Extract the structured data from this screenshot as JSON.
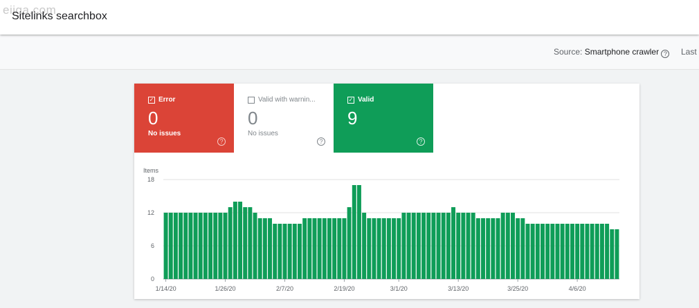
{
  "watermark": "eiiga.com",
  "page_title": "Sitelinks searchbox",
  "source": {
    "label": "Source:",
    "value": "Smartphone crawler",
    "help": "?"
  },
  "last_label": "Last",
  "tiles": {
    "error": {
      "label": "Error",
      "count": "0",
      "sub": "No issues",
      "color": "#db4437"
    },
    "warning": {
      "label": "Valid with warnin...",
      "count": "0",
      "sub": "No issues"
    },
    "valid": {
      "label": "Valid",
      "count": "9",
      "sub": "",
      "color": "#0f9d58"
    }
  },
  "check_glyph": "✓",
  "help_glyph": "?",
  "chart_data": {
    "type": "bar",
    "ylabel": "Items",
    "yticks": [
      "0",
      "6",
      "12",
      "18"
    ],
    "ylim": [
      0,
      18
    ],
    "xtick_labels": [
      "1/14/20",
      "1/26/20",
      "2/7/20",
      "2/19/20",
      "3/1/20",
      "3/13/20",
      "3/25/20",
      "4/6/20"
    ],
    "xtick_index": [
      0,
      12,
      24,
      36,
      47,
      59,
      71,
      83
    ],
    "bar_color": "#0f9d58",
    "values": [
      12,
      12,
      12,
      12,
      12,
      12,
      12,
      12,
      12,
      12,
      12,
      12,
      12,
      13,
      14,
      14,
      13,
      13,
      12,
      11,
      11,
      11,
      10,
      10,
      10,
      10,
      10,
      10,
      11,
      11,
      11,
      11,
      11,
      11,
      11,
      11,
      11,
      13,
      17,
      17,
      12,
      11,
      11,
      11,
      11,
      11,
      11,
      11,
      12,
      12,
      12,
      12,
      12,
      12,
      12,
      12,
      12,
      12,
      13,
      12,
      12,
      12,
      12,
      11,
      11,
      11,
      11,
      11,
      12,
      12,
      12,
      11,
      11,
      10,
      10,
      10,
      10,
      10,
      10,
      10,
      10,
      10,
      10,
      10,
      10,
      10,
      10,
      10,
      10,
      10,
      9,
      9
    ]
  }
}
